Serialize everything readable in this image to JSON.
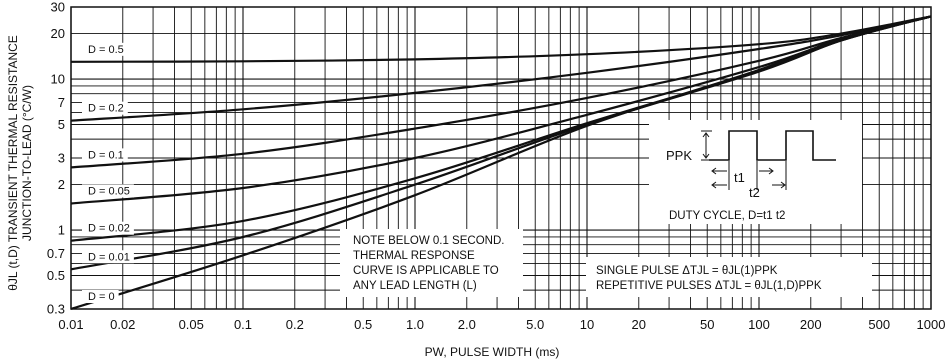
{
  "chart_data": {
    "type": "line",
    "title": "",
    "xlabel": "PW, PULSE WIDTH (ms)",
    "ylabel_line1": "θJL (t,D) TRANSIENT THERMAL RESISTANCE",
    "ylabel_line2": "JUNCTION-TO-LEAD (°C/W)",
    "x_scale": "log",
    "y_scale": "log",
    "xlim": [
      0.01,
      1000
    ],
    "ylim": [
      0.3,
      30
    ],
    "grid": true,
    "x_ticks": [
      0.01,
      0.02,
      0.05,
      0.1,
      0.2,
      0.5,
      1.0,
      2.0,
      5.0,
      10,
      20,
      50,
      100,
      200,
      500,
      1000
    ],
    "x_tick_labels": [
      "0.01",
      "0.02",
      "0.05",
      "0.1",
      "0.2",
      "0.5",
      "1.0",
      "2.0",
      "5.0",
      "10",
      "20",
      "50",
      "100",
      "200",
      "500",
      "1000"
    ],
    "y_ticks": [
      0.3,
      0.5,
      0.7,
      1,
      2,
      3,
      5,
      7,
      10,
      20,
      30
    ],
    "y_tick_labels": [
      "0.3",
      "0.5",
      "0.7",
      "1",
      "2",
      "3",
      "5",
      "7",
      "10",
      "20",
      "30"
    ],
    "series": [
      {
        "name": "D = 0.5",
        "points": [
          [
            0.01,
            13
          ],
          [
            0.1,
            13.1
          ],
          [
            1,
            13.5
          ],
          [
            10,
            14.6
          ],
          [
            100,
            17
          ],
          [
            300,
            20
          ],
          [
            1000,
            26
          ]
        ]
      },
      {
        "name": "D = 0.2",
        "points": [
          [
            0.01,
            5.3
          ],
          [
            0.1,
            6.3
          ],
          [
            1,
            8.1
          ],
          [
            10,
            11
          ],
          [
            100,
            15.8
          ],
          [
            300,
            19.5
          ],
          [
            1000,
            26
          ]
        ]
      },
      {
        "name": "D = 0.1",
        "points": [
          [
            0.01,
            2.6
          ],
          [
            0.1,
            3.2
          ],
          [
            1,
            4.7
          ],
          [
            10,
            7.5
          ],
          [
            100,
            13.2
          ],
          [
            300,
            18.7
          ],
          [
            1000,
            26
          ]
        ]
      },
      {
        "name": "D = 0.05",
        "points": [
          [
            0.01,
            1.5
          ],
          [
            0.1,
            1.9
          ],
          [
            1,
            3.0
          ],
          [
            10,
            5.8
          ],
          [
            100,
            12
          ],
          [
            300,
            18.3
          ],
          [
            1000,
            26
          ]
        ]
      },
      {
        "name": "D = 0.02",
        "points": [
          [
            0.01,
            0.85
          ],
          [
            0.1,
            1.15
          ],
          [
            1,
            2.2
          ],
          [
            10,
            5.1
          ],
          [
            100,
            11.3
          ],
          [
            300,
            18
          ],
          [
            1000,
            26
          ]
        ]
      },
      {
        "name": "D = 0.01",
        "points": [
          [
            0.01,
            0.55
          ],
          [
            0.1,
            0.9
          ],
          [
            1,
            2.0
          ],
          [
            10,
            5.0
          ],
          [
            100,
            11.2
          ],
          [
            300,
            18
          ],
          [
            1000,
            26
          ]
        ]
      },
      {
        "name": "D = 0",
        "points": [
          [
            0.01,
            0.3
          ],
          [
            0.1,
            0.68
          ],
          [
            1,
            1.7
          ],
          [
            10,
            4.9
          ],
          [
            100,
            11.5
          ],
          [
            300,
            18.5
          ],
          [
            1000,
            26
          ]
        ]
      }
    ],
    "annotations": {
      "note_lines": [
        "NOTE BELOW 0.1 SECOND.",
        "THERMAL RESPONSE",
        "CURVE IS APPLICABLE TO",
        "ANY LEAD LENGTH (L)"
      ],
      "formula_lines": [
        "SINGLE PULSE  ΔTJL = θJL(1)PPK",
        "REPETITIVE PULSES ΔTJL = θJL(1,D)PPK"
      ],
      "inset": {
        "ppk": "PPK",
        "t1": "t1",
        "t2": "t2",
        "caption": "DUTY CYCLE, D=t1 t2"
      }
    }
  }
}
